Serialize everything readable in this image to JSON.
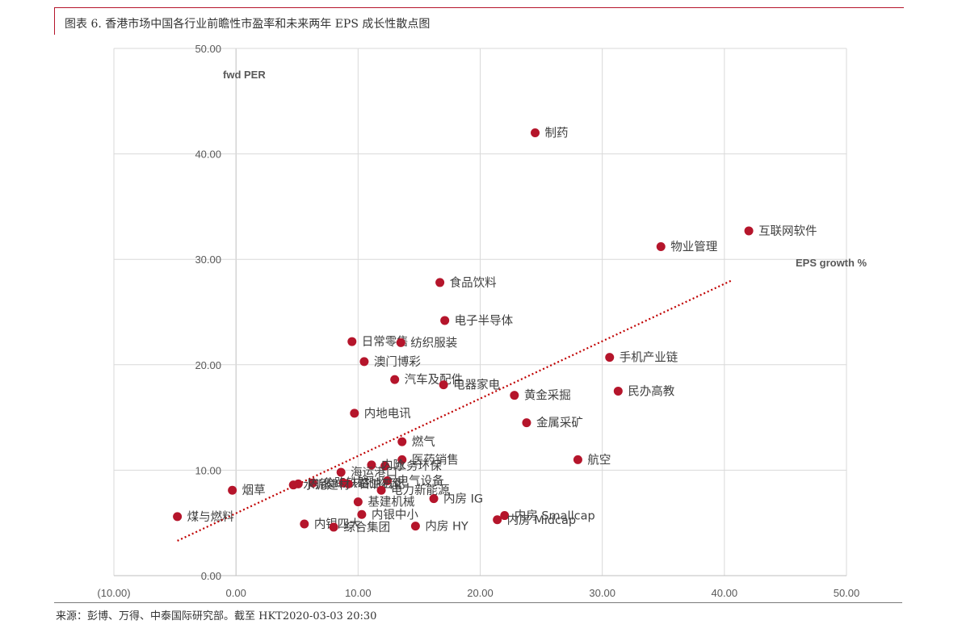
{
  "header": {
    "title": "图表 6.  香港市场中国各行业前瞻性市盈率和未来两年 EPS 成长性散点图"
  },
  "footer": {
    "source": "来源：彭博、万得、中泰国际研究部。截至 HKT2020-03-03 20:30"
  },
  "colors": {
    "accent": "#b5152b",
    "point": "#b5152b",
    "trend": "#c00000",
    "grid": "#d9d9d9"
  },
  "chart_data": {
    "type": "scatter",
    "ylabel": "fwd PER",
    "xlabel": "EPS growth %",
    "xlim": [
      -10,
      50
    ],
    "ylim": [
      0,
      50
    ],
    "x_ticks": [
      "(10.00)",
      "0.00",
      "10.00",
      "20.00",
      "30.00",
      "40.00",
      "50.00"
    ],
    "y_ticks": [
      "0.00",
      "10.00",
      "20.00",
      "30.00",
      "40.00",
      "50.00"
    ],
    "grid": true,
    "trendline": {
      "style": "dotted",
      "x": [
        -4.8,
        40.6
      ],
      "y": [
        3.3,
        28.0
      ]
    },
    "points": [
      {
        "label": "制药",
        "x": 24.5,
        "y": 42.0
      },
      {
        "label": "互联网软件",
        "x": 42.0,
        "y": 32.7
      },
      {
        "label": "物业管理",
        "x": 34.8,
        "y": 31.2
      },
      {
        "label": "食品饮料",
        "x": 16.7,
        "y": 27.8
      },
      {
        "label": "电子半导体",
        "x": 17.1,
        "y": 24.2
      },
      {
        "label": "日常零售",
        "x": 9.5,
        "y": 22.2
      },
      {
        "label": "纺织服装",
        "x": 13.5,
        "y": 22.1
      },
      {
        "label": "澳门博彩",
        "x": 10.5,
        "y": 20.3
      },
      {
        "label": "手机产业链",
        "x": 30.6,
        "y": 20.7
      },
      {
        "label": "汽车及配件",
        "x": 13.0,
        "y": 18.6
      },
      {
        "label": "电器家电",
        "x": 17.0,
        "y": 18.1
      },
      {
        "label": "民办高教",
        "x": 31.3,
        "y": 17.5
      },
      {
        "label": "黄金采掘",
        "x": 22.8,
        "y": 17.1
      },
      {
        "label": "内地电讯",
        "x": 9.7,
        "y": 15.4
      },
      {
        "label": "金属采矿",
        "x": 23.8,
        "y": 14.5
      },
      {
        "label": "燃气",
        "x": 13.6,
        "y": 12.7
      },
      {
        "label": "航空",
        "x": 28.0,
        "y": 11.0
      },
      {
        "label": "医药销售",
        "x": 13.6,
        "y": 11.0
      },
      {
        "label": "水务环保",
        "x": 12.2,
        "y": 10.4
      },
      {
        "label": "内险",
        "x": 11.1,
        "y": 10.5
      },
      {
        "label": "海运港口",
        "x": 8.6,
        "y": 9.8
      },
      {
        "label": "电气设备",
        "x": 12.4,
        "y": 9.0
      },
      {
        "label": "公路铁路",
        "x": 6.3,
        "y": 8.8
      },
      {
        "label": "内地物流",
        "x": 8.8,
        "y": 8.8
      },
      {
        "label": "石油石化",
        "x": 9.2,
        "y": 8.7
      },
      {
        "label": "内银",
        "x": 5.1,
        "y": 8.7
      },
      {
        "label": "水泥建材",
        "x": 4.7,
        "y": 8.6
      },
      {
        "label": "烟草",
        "x": -0.3,
        "y": 8.1
      },
      {
        "label": "电力新能源",
        "x": 11.9,
        "y": 8.1
      },
      {
        "label": "内房 IG",
        "x": 16.2,
        "y": 7.3
      },
      {
        "label": "基建机械",
        "x": 10.0,
        "y": 7.0
      },
      {
        "label": "煤与燃料",
        "x": -4.8,
        "y": 5.6
      },
      {
        "label": "内银中小",
        "x": 10.3,
        "y": 5.8
      },
      {
        "label": "内房 Smallcap",
        "x": 22.0,
        "y": 5.7
      },
      {
        "label": "内房 Midcap",
        "x": 21.4,
        "y": 5.3
      },
      {
        "label": "内银四大",
        "x": 5.6,
        "y": 4.9
      },
      {
        "label": "综合集团",
        "x": 8.0,
        "y": 4.6
      },
      {
        "label": "内房 HY",
        "x": 14.7,
        "y": 4.7
      }
    ]
  }
}
